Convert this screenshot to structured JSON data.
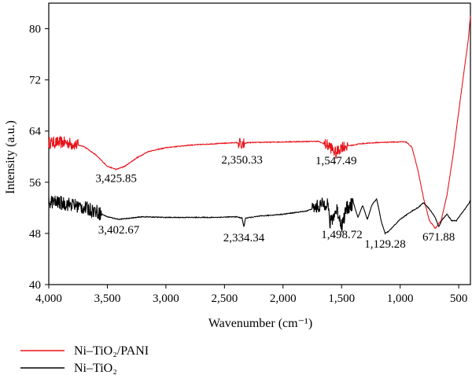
{
  "chart_data": {
    "type": "line",
    "xlabel": "Wavenumber (cm⁻¹)",
    "ylabel": "Intensity (a.u.)",
    "xlim": [
      4000,
      400
    ],
    "ylim": [
      40,
      84
    ],
    "x_reversed": true,
    "x_ticks": [
      4000,
      3500,
      3000,
      2500,
      2000,
      1500,
      1000,
      500
    ],
    "x_tick_labels": [
      "4,000",
      "3,500",
      "3,000",
      "2,500",
      "2,000",
      "1,500",
      "1,000",
      "500"
    ],
    "y_ticks": [
      40,
      48,
      56,
      64,
      72,
      80
    ],
    "y_tick_labels": [
      "40",
      "48",
      "56",
      "64",
      "72",
      "80"
    ],
    "grid": false,
    "legend_position": "bottom-left",
    "series": [
      {
        "name": "Ni–TiO₂/PANI",
        "color": "#e8141b",
        "noise": 1.2,
        "noise_ranges": [
          [
            4000,
            3750
          ],
          [
            1650,
            1450
          ],
          [
            2380,
            2330
          ]
        ],
        "points": [
          [
            4000,
            62.2
          ],
          [
            3850,
            62.2
          ],
          [
            3700,
            61.6
          ],
          [
            3600,
            60.3
          ],
          [
            3500,
            58.5
          ],
          [
            3425,
            58.0
          ],
          [
            3350,
            58.5
          ],
          [
            3250,
            59.8
          ],
          [
            3150,
            60.8
          ],
          [
            3000,
            61.4
          ],
          [
            2800,
            61.8
          ],
          [
            2600,
            62.0
          ],
          [
            2400,
            62.2
          ],
          [
            2360,
            62.0
          ],
          [
            2350,
            60.9
          ],
          [
            2340,
            62.0
          ],
          [
            2300,
            62.2
          ],
          [
            2000,
            62.3
          ],
          [
            1700,
            62.4
          ],
          [
            1600,
            61.6
          ],
          [
            1547,
            60.5
          ],
          [
            1500,
            61.6
          ],
          [
            1400,
            61.8
          ],
          [
            1350,
            62.0
          ],
          [
            1200,
            62.2
          ],
          [
            1050,
            62.3
          ],
          [
            950,
            62.3
          ],
          [
            900,
            61.5
          ],
          [
            850,
            58.0
          ],
          [
            800,
            53.5
          ],
          [
            750,
            50.0
          ],
          [
            700,
            48.8
          ],
          [
            650,
            50.0
          ],
          [
            600,
            54.0
          ],
          [
            550,
            60.0
          ],
          [
            500,
            67.0
          ],
          [
            450,
            74.0
          ],
          [
            420,
            78.0
          ],
          [
            405,
            81.0
          ],
          [
            400,
            82.0
          ]
        ]
      },
      {
        "name": "Ni–TiO₂",
        "color": "#000000",
        "noise": 1.4,
        "noise_ranges": [
          [
            4000,
            3550
          ],
          [
            1750,
            1400
          ]
        ],
        "points": [
          [
            4000,
            53.0
          ],
          [
            3800,
            52.5
          ],
          [
            3600,
            51.5
          ],
          [
            3500,
            50.6
          ],
          [
            3402,
            50.2
          ],
          [
            3300,
            50.4
          ],
          [
            3200,
            50.6
          ],
          [
            3000,
            50.5
          ],
          [
            2800,
            50.5
          ],
          [
            2600,
            50.5
          ],
          [
            2400,
            50.6
          ],
          [
            2350,
            50.4
          ],
          [
            2334,
            49.0
          ],
          [
            2320,
            50.4
          ],
          [
            2200,
            50.7
          ],
          [
            2000,
            51.0
          ],
          [
            1800,
            51.5
          ],
          [
            1650,
            52.6
          ],
          [
            1620,
            53.0
          ],
          [
            1600,
            49.5
          ],
          [
            1540,
            51.8
          ],
          [
            1498,
            49.2
          ],
          [
            1460,
            51.8
          ],
          [
            1400,
            52.8
          ],
          [
            1360,
            50.5
          ],
          [
            1320,
            52.4
          ],
          [
            1280,
            50.2
          ],
          [
            1240,
            52.5
          ],
          [
            1200,
            53.4
          ],
          [
            1160,
            49.8
          ],
          [
            1129,
            48.0
          ],
          [
            1100,
            48.3
          ],
          [
            1000,
            50.2
          ],
          [
            900,
            51.5
          ],
          [
            850,
            52.0
          ],
          [
            800,
            52.8
          ],
          [
            750,
            51.8
          ],
          [
            700,
            50.5
          ],
          [
            671,
            49.0
          ],
          [
            640,
            50.2
          ],
          [
            600,
            51.0
          ],
          [
            560,
            50.0
          ],
          [
            520,
            50.0
          ],
          [
            480,
            51.0
          ],
          [
            440,
            52.0
          ],
          [
            410,
            52.8
          ],
          [
            400,
            53.2
          ]
        ]
      }
    ],
    "annotations": [
      {
        "text": "3,425.85",
        "x": 3425,
        "y": 58.0,
        "label_dy": 16
      },
      {
        "text": "2,350.33",
        "x": 2350,
        "y": 60.9,
        "label_dy": 16
      },
      {
        "text": "1,547.49",
        "x": 1547,
        "y": 60.5,
        "label_dy": 14
      },
      {
        "text": "3,402.67",
        "x": 3402,
        "y": 50.2,
        "label_dy": 18
      },
      {
        "text": "2,334.34",
        "x": 2334,
        "y": 49.0,
        "label_dy": 18
      },
      {
        "text": "1,498.72",
        "x": 1498,
        "y": 49.2,
        "label_dy": 16
      },
      {
        "text": "1,129.28",
        "x": 1129,
        "y": 48.0,
        "label_dy": 18
      },
      {
        "text": "671.88",
        "x": 671,
        "y": 49.0,
        "label_dy": 17
      }
    ]
  }
}
